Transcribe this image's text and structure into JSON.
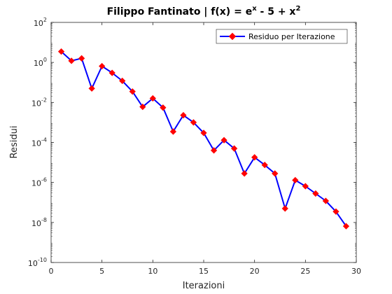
{
  "chart_data": {
    "type": "line",
    "title": {
      "prefix": "Filippo Fantinato | f(x) = e",
      "sup1": "x",
      "middle": " - 5 + x",
      "sup2": "2"
    },
    "xlabel": "Iterazioni",
    "ylabel": "Residui",
    "xlim": [
      0,
      30
    ],
    "ylim": [
      1e-10,
      100
    ],
    "yscale": "log",
    "xticks": [
      "0",
      "5",
      "10",
      "15",
      "20",
      "25",
      "30"
    ],
    "yticks": [
      {
        "base": "10",
        "exp": "-10"
      },
      {
        "base": "10",
        "exp": "-8"
      },
      {
        "base": "10",
        "exp": "-6"
      },
      {
        "base": "10",
        "exp": "-4"
      },
      {
        "base": "10",
        "exp": "-2"
      },
      {
        "base": "10",
        "exp": "0"
      },
      {
        "base": "10",
        "exp": "2"
      }
    ],
    "legend_position": "top-right",
    "grid": false,
    "series": [
      {
        "name": "Residuo per Iterazione",
        "line_color": "#0000ff",
        "marker_color": "#ff0000",
        "marker": "diamond",
        "x": [
          1,
          2,
          3,
          4,
          5,
          6,
          7,
          8,
          9,
          10,
          11,
          12,
          13,
          14,
          15,
          16,
          17,
          18,
          19,
          20,
          21,
          22,
          23,
          24,
          25,
          26,
          27,
          28,
          29
        ],
        "y": [
          3.5,
          1.2,
          1.6,
          0.05,
          0.65,
          0.3,
          0.12,
          0.035,
          0.006,
          0.016,
          0.0055,
          0.00035,
          0.0023,
          0.001,
          0.0003,
          4e-05,
          0.00013,
          5e-05,
          2.8e-06,
          1.8e-05,
          7.5e-06,
          2.8e-06,
          5e-08,
          1.3e-06,
          6.5e-07,
          2.8e-07,
          1.2e-07,
          3.5e-08,
          6.5e-09
        ]
      }
    ]
  }
}
